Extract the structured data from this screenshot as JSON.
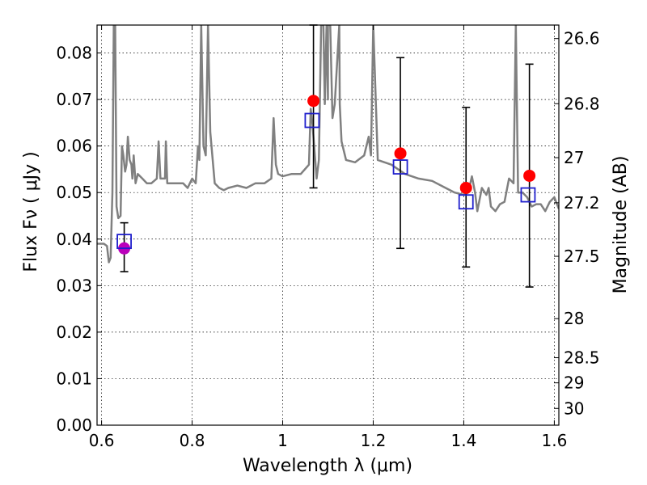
{
  "chart_data": {
    "type": "scatter",
    "xlabel": "Wavelength  λ (μm)",
    "ylabel": "Flux  Fν ( μJy )",
    "ylabel_right": "Magnitude (AB)",
    "xlim": [
      0.59,
      1.61
    ],
    "ylim": [
      0.0,
      0.086
    ],
    "grid": true,
    "x_ticks": [
      0.6,
      0.8,
      1.0,
      1.2,
      1.4,
      1.6
    ],
    "x_tick_labels": [
      "0.6",
      "0.8",
      "1",
      "1.2",
      "1.4",
      "1.6"
    ],
    "y_ticks": [
      0.0,
      0.01,
      0.02,
      0.03,
      0.04,
      0.05,
      0.06,
      0.07,
      0.08
    ],
    "y_tick_labels": [
      "0.00",
      "0.01",
      "0.02",
      "0.03",
      "0.04",
      "0.05",
      "0.06",
      "0.07",
      "0.08"
    ],
    "right_ticks": [
      {
        "label": "26.6",
        "flux": 0.0831
      },
      {
        "label": "26.8",
        "flux": 0.0691
      },
      {
        "label": "27",
        "flux": 0.0575
      },
      {
        "label": "27.2",
        "flux": 0.0478
      },
      {
        "label": "27.5",
        "flux": 0.0363
      },
      {
        "label": "28",
        "flux": 0.0229
      },
      {
        "label": "28.5",
        "flux": 0.0145
      },
      {
        "label": "29",
        "flux": 0.0091
      },
      {
        "label": "30",
        "flux": 0.0036
      }
    ],
    "series": [
      {
        "kind": "sed_model",
        "color": "#808080",
        "x": [
          0.59,
          0.605,
          0.612,
          0.616,
          0.62,
          0.624,
          0.627,
          0.63,
          0.633,
          0.637,
          0.642,
          0.645,
          0.648,
          0.652,
          0.655,
          0.658,
          0.662,
          0.666,
          0.668,
          0.671,
          0.675,
          0.68,
          0.69,
          0.7,
          0.71,
          0.722,
          0.726,
          0.73,
          0.74,
          0.742,
          0.745,
          0.76,
          0.78,
          0.79,
          0.8,
          0.808,
          0.813,
          0.816,
          0.82,
          0.825,
          0.83,
          0.835,
          0.84,
          0.85,
          0.86,
          0.87,
          0.88,
          0.9,
          0.92,
          0.94,
          0.96,
          0.975,
          0.98,
          0.985,
          0.99,
          1.0,
          1.02,
          1.04,
          1.058,
          1.062,
          1.066,
          1.075,
          1.08,
          1.085,
          1.09,
          1.093,
          1.097,
          1.1,
          1.1,
          1.105,
          1.11,
          1.115,
          1.125,
          1.126,
          1.13,
          1.14,
          1.16,
          1.18,
          1.19,
          1.195,
          1.2,
          1.21,
          1.24,
          1.27,
          1.3,
          1.33,
          1.36,
          1.38,
          1.4,
          1.41,
          1.418,
          1.425,
          1.43,
          1.44,
          1.45,
          1.455,
          1.46,
          1.47,
          1.48,
          1.49,
          1.5,
          1.51,
          1.515,
          1.52,
          1.53,
          1.54,
          1.55,
          1.56,
          1.57,
          1.58,
          1.59,
          1.6,
          1.61
        ],
        "y": [
          0.039,
          0.039,
          0.0385,
          0.035,
          0.036,
          0.05,
          0.086,
          0.086,
          0.047,
          0.0445,
          0.045,
          0.06,
          0.058,
          0.0545,
          0.056,
          0.062,
          0.057,
          0.056,
          0.053,
          0.058,
          0.052,
          0.054,
          0.053,
          0.052,
          0.052,
          0.053,
          0.061,
          0.053,
          0.053,
          0.061,
          0.052,
          0.052,
          0.052,
          0.051,
          0.053,
          0.052,
          0.06,
          0.057,
          0.086,
          0.06,
          0.058,
          0.086,
          0.063,
          0.052,
          0.051,
          0.0505,
          0.051,
          0.0515,
          0.051,
          0.052,
          0.052,
          0.053,
          0.066,
          0.056,
          0.054,
          0.0535,
          0.054,
          0.054,
          0.056,
          0.068,
          0.0645,
          0.053,
          0.057,
          0.086,
          0.086,
          0.069,
          0.086,
          0.07,
          0.086,
          0.086,
          0.066,
          0.069,
          0.086,
          0.069,
          0.061,
          0.057,
          0.0565,
          0.058,
          0.062,
          0.058,
          0.086,
          0.057,
          0.056,
          0.054,
          0.053,
          0.0525,
          0.051,
          0.05,
          0.0495,
          0.05,
          0.0535,
          0.05,
          0.046,
          0.051,
          0.0495,
          0.051,
          0.047,
          0.046,
          0.0475,
          0.048,
          0.053,
          0.052,
          0.086,
          0.05,
          0.05,
          0.049,
          0.047,
          0.0475,
          0.0475,
          0.046,
          0.048,
          0.049,
          0.0465
        ]
      },
      {
        "kind": "model_photometry",
        "marker": "open square",
        "color": "#1f1fcc",
        "x": [
          0.65,
          1.065,
          1.26,
          1.405,
          1.542
        ],
        "y": [
          0.0395,
          0.0655,
          0.0555,
          0.048,
          0.0495
        ]
      },
      {
        "kind": "observed_flux",
        "marker": "filled circle",
        "x": [
          0.65,
          1.068,
          1.26,
          1.405,
          1.545
        ],
        "y": [
          0.038,
          0.0697,
          0.0584,
          0.051,
          0.0536
        ],
        "yerr_low": [
          0.033,
          0.051,
          0.038,
          0.034,
          0.0297
        ],
        "yerr_high": [
          0.0435,
          0.086,
          0.079,
          0.0683,
          0.0776
        ],
        "colors": [
          "#bb00bb",
          "#ff0000",
          "#ff0000",
          "#ff0000",
          "#ff0000"
        ]
      }
    ]
  }
}
